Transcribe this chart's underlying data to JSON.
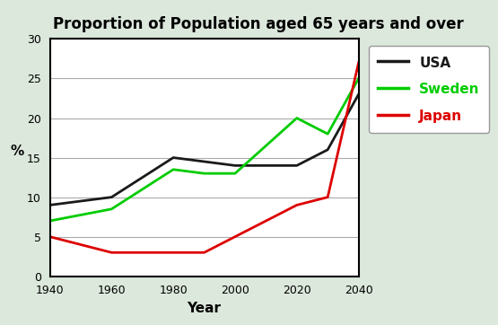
{
  "title": "Proportion of Population aged 65 years and over",
  "xlabel": "Year",
  "ylabel": "%",
  "years": [
    1940,
    1960,
    1980,
    1990,
    2000,
    2020,
    2030,
    2040
  ],
  "usa": [
    9,
    10,
    15,
    14.5,
    14,
    14,
    16,
    23
  ],
  "sweden": [
    7,
    8.5,
    13.5,
    13,
    13,
    20,
    18,
    25
  ],
  "japan": [
    5,
    3,
    3,
    3,
    5,
    9,
    10,
    27
  ],
  "usa_color": "#1a1a1a",
  "sweden_color": "#00cc00",
  "japan_color": "#dd0000",
  "ylim": [
    0,
    30
  ],
  "xlim": [
    1940,
    2040
  ],
  "xticks": [
    1940,
    1960,
    1980,
    2000,
    2020,
    2040
  ],
  "yticks": [
    0,
    5,
    10,
    15,
    20,
    25,
    30
  ],
  "bg_outer": "#dce8dc",
  "bg_inner": "#ffffff",
  "legend_labels": [
    "USA",
    "Sweden",
    "Japan"
  ],
  "legend_colors": [
    "#1a1a1a",
    "#00cc00",
    "#dd0000"
  ],
  "title_fontsize": 12,
  "axis_label_fontsize": 11,
  "tick_fontsize": 9,
  "legend_fontsize": 11
}
